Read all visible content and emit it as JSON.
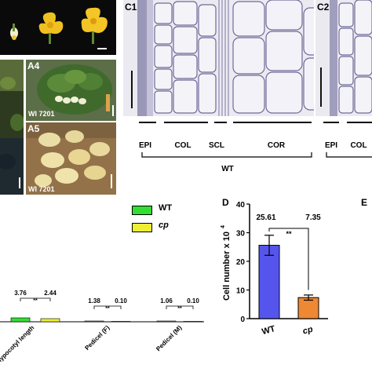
{
  "panels": {
    "a4": {
      "letter": "A4",
      "variety": "WI 7201"
    },
    "a5": {
      "letter": "A5",
      "variety": "WI 7201"
    },
    "c1": {
      "letter": "C1",
      "tissues": [
        "EPI",
        "COL",
        "SCL",
        "COR"
      ],
      "genotype": "WT"
    },
    "c2": {
      "letter": "C2",
      "tissues": [
        "EPI",
        "COL"
      ]
    },
    "e": {
      "letter": "E"
    }
  },
  "legend_b": {
    "items": [
      {
        "label": "WT",
        "color": "#33dd33"
      },
      {
        "label": "cp",
        "color": "#eeee33"
      }
    ]
  },
  "chart_b": {
    "groups": [
      {
        "label": "Hypocotyl length",
        "wt": "3.76",
        "cp": "2.44",
        "sig": "**"
      },
      {
        "label": "Pedicel (F)",
        "wt": "1.38",
        "cp": "0.10",
        "sig": "**"
      },
      {
        "label": "Pedicel (M)",
        "wt": "1.06",
        "cp": "0.10",
        "sig": "**"
      }
    ]
  },
  "chart_data": {
    "type": "bar",
    "panel_letter": "D",
    "categories": [
      "WT",
      "cp"
    ],
    "values": [
      25.61,
      7.35
    ],
    "errors": [
      3.5,
      0.9
    ],
    "value_labels": [
      "25.61",
      "7.35"
    ],
    "significance": "**",
    "ylabel": "Cell number x 10",
    "ylabel_exponent": "4",
    "ylim": [
      0,
      40
    ],
    "yticks": [
      "0",
      "10",
      "20",
      "30",
      "40"
    ],
    "colors": [
      "#5555ee",
      "#ee8833"
    ],
    "grid": false
  }
}
